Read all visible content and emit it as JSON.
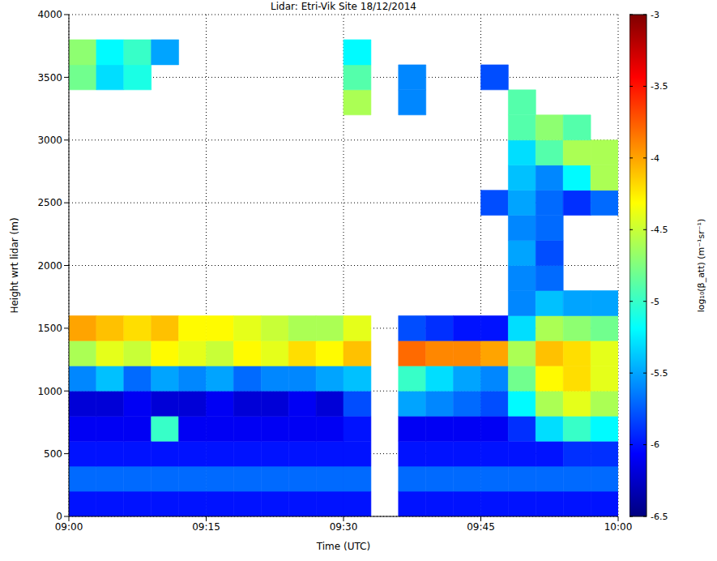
{
  "chart_data": {
    "type": "heatmap",
    "title": "Lidar: Etri-Vik Site 18/12/2014",
    "x_label": "Time (UTC)",
    "y_label": "Height wrt lidar (m)",
    "xlim": [
      0,
      60
    ],
    "xticks": [
      {
        "value": 0,
        "label": "09:00"
      },
      {
        "value": 15,
        "label": "09:15"
      },
      {
        "value": 30,
        "label": "09:30"
      },
      {
        "value": 45,
        "label": "09:45"
      },
      {
        "value": 60,
        "label": "10:00"
      }
    ],
    "ylim": [
      0,
      4000
    ],
    "yticks": [
      0,
      500,
      1000,
      1500,
      2000,
      2500,
      3000,
      3500,
      4000
    ],
    "grid": true,
    "x_bins": [
      0,
      3,
      6,
      9,
      12,
      15,
      18,
      21,
      24,
      27,
      30,
      33,
      36,
      39,
      42,
      45,
      48,
      51,
      54,
      57,
      60
    ],
    "y_bins": [
      0,
      200,
      400,
      600,
      800,
      1000,
      1200,
      1400,
      1600,
      1800,
      2000,
      2200,
      2400,
      2600,
      2800,
      3000,
      3200,
      3400,
      3600,
      3800,
      4000
    ],
    "cells": [
      [
        -6,
        -6,
        -6,
        -6,
        -6,
        -6,
        -6,
        -6,
        -6,
        -6,
        -6,
        null,
        -6,
        -6,
        -6,
        -6,
        -6,
        -6,
        -6,
        -6
      ],
      [
        -5.7,
        -5.7,
        -5.7,
        -5.7,
        -5.7,
        -5.7,
        -5.7,
        -5.7,
        -5.7,
        -5.7,
        -5.7,
        null,
        -5.7,
        -5.7,
        -5.7,
        -5.7,
        -5.7,
        -5.7,
        -5.7,
        -5.7
      ],
      [
        -6,
        -6,
        -6,
        -6,
        -6,
        -6,
        -6,
        -6,
        -6,
        -6,
        -6,
        null,
        -6,
        -6,
        -6,
        -6,
        -6,
        -6,
        -5.9,
        -5.9
      ],
      [
        -6.1,
        -6.1,
        -6.1,
        -5.0,
        -6.1,
        -6.1,
        -6.1,
        -6.1,
        -6.1,
        -6.1,
        -6.0,
        null,
        -6.1,
        -6.1,
        -6.1,
        -6.1,
        -5.9,
        -5.3,
        -5.0,
        -5.2
      ],
      [
        -6.2,
        -6.2,
        -6.1,
        -6.2,
        -6.2,
        -6.1,
        -6.2,
        -6.2,
        -6.1,
        -6.2,
        -5.8,
        null,
        -5.5,
        -5.6,
        -5.7,
        -5.8,
        -5.2,
        -4.6,
        -4.4,
        -4.6
      ],
      [
        -5.6,
        -5.4,
        -5.7,
        -5.5,
        -5.6,
        -5.5,
        -5.7,
        -5.6,
        -5.6,
        -5.5,
        -5.4,
        null,
        -5.0,
        -5.3,
        -5.5,
        -5.6,
        -4.8,
        -4.3,
        -4.2,
        -4.4
      ],
      [
        -4.6,
        -4.4,
        -4.5,
        -4.3,
        -4.4,
        -4.5,
        -4.3,
        -4.4,
        -4.2,
        -4.3,
        -4.1,
        null,
        -3.8,
        -3.9,
        -3.9,
        -4.0,
        -4.6,
        -4.1,
        -4.2,
        -4.4
      ],
      [
        -4.0,
        -4.1,
        -4.2,
        -4.1,
        -4.3,
        -4.3,
        -4.4,
        -4.5,
        -4.6,
        -4.6,
        -4.4,
        null,
        -5.8,
        -5.9,
        -6.0,
        -6.0,
        -5.3,
        -4.6,
        -4.7,
        -4.8
      ],
      [
        null,
        null,
        null,
        null,
        null,
        null,
        null,
        null,
        null,
        null,
        null,
        null,
        null,
        null,
        null,
        null,
        -5.6,
        -5.4,
        -5.5,
        -5.5
      ],
      [
        null,
        null,
        null,
        null,
        null,
        null,
        null,
        null,
        null,
        null,
        null,
        null,
        null,
        null,
        null,
        null,
        -5.6,
        -5.7,
        null,
        null
      ],
      [
        null,
        null,
        null,
        null,
        null,
        null,
        null,
        null,
        null,
        null,
        null,
        null,
        null,
        null,
        null,
        null,
        -5.5,
        -5.8,
        null,
        null
      ],
      [
        null,
        null,
        null,
        null,
        null,
        null,
        null,
        null,
        null,
        null,
        null,
        null,
        null,
        null,
        null,
        null,
        -5.6,
        -5.7,
        null,
        null
      ],
      [
        null,
        null,
        null,
        null,
        null,
        null,
        null,
        null,
        null,
        null,
        null,
        null,
        null,
        null,
        null,
        -5.8,
        -5.5,
        -5.7,
        -5.9,
        -5.7
      ],
      [
        null,
        null,
        null,
        null,
        null,
        null,
        null,
        null,
        null,
        null,
        null,
        null,
        null,
        null,
        null,
        null,
        -5.4,
        -5.6,
        -5.2,
        -4.6
      ],
      [
        null,
        null,
        null,
        null,
        null,
        null,
        null,
        null,
        null,
        null,
        null,
        null,
        null,
        null,
        null,
        null,
        -5.3,
        -4.9,
        -4.6,
        -4.6
      ],
      [
        null,
        null,
        null,
        null,
        null,
        null,
        null,
        null,
        null,
        null,
        null,
        null,
        null,
        null,
        null,
        null,
        -4.9,
        -4.7,
        -4.9,
        null
      ],
      [
        null,
        null,
        null,
        null,
        null,
        null,
        null,
        null,
        null,
        null,
        -4.6,
        null,
        -5.6,
        null,
        null,
        null,
        -4.9,
        null,
        null,
        null
      ],
      [
        -4.8,
        -5.3,
        -5.1,
        null,
        null,
        null,
        null,
        null,
        null,
        null,
        -4.9,
        null,
        -5.6,
        null,
        null,
        -5.8,
        null,
        null,
        null,
        null
      ],
      [
        -4.7,
        -5.2,
        -5.0,
        -5.5,
        null,
        null,
        null,
        null,
        null,
        null,
        -5.2,
        null,
        null,
        null,
        null,
        null,
        null,
        null,
        null,
        null
      ],
      [
        null,
        null,
        null,
        null,
        null,
        null,
        null,
        null,
        null,
        null,
        null,
        null,
        null,
        null,
        null,
        null,
        null,
        null,
        null,
        null
      ]
    ],
    "colorbar_label": "log₁₀(β_att) (m⁻¹sr⁻¹)",
    "color_range": [
      -6.5,
      -3
    ],
    "color_ticks": [
      -6.5,
      -6,
      -5.5,
      -5,
      -4.5,
      -4,
      -3.5,
      -3
    ]
  }
}
